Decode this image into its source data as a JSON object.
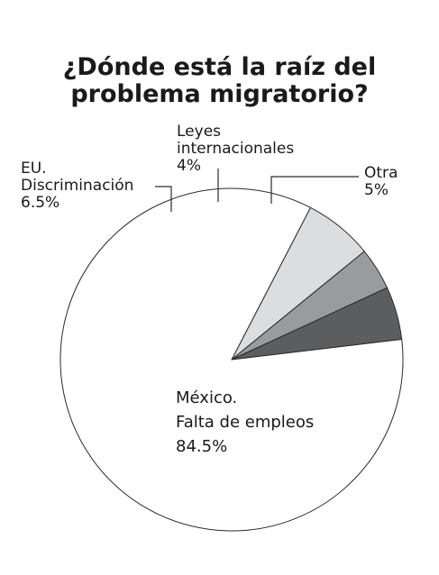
{
  "chart_data": {
    "type": "pie",
    "title_lines": [
      "¿Dónde está la raíz del",
      "problema migratorio?"
    ],
    "slices": [
      {
        "key": "eu",
        "label_lines": [
          "EU.",
          "Discriminación"
        ],
        "value_text": "6.5%",
        "value": 6.5,
        "color": "#dcdddf"
      },
      {
        "key": "leyes",
        "label_lines": [
          "Leyes",
          "internacionales"
        ],
        "value_text": "4%",
        "value": 4,
        "color": "#9a9b9d"
      },
      {
        "key": "otra",
        "label_lines": [
          "Otra"
        ],
        "value_text": "5%",
        "value": 5,
        "color": "#5c5d5f"
      },
      {
        "key": "mexico",
        "label_lines": [
          "México.",
          "Falta de empleos"
        ],
        "value_text": "84.5%",
        "value": 84.5,
        "color": "#ffffff"
      }
    ],
    "legend": "none",
    "grid": false
  }
}
